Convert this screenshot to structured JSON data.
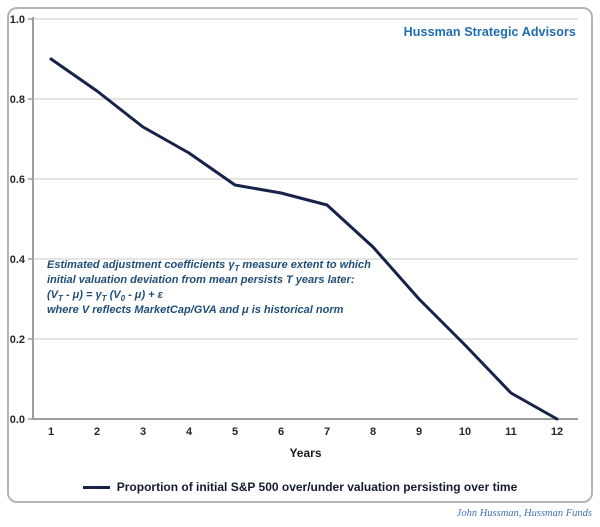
{
  "frame": {
    "title": "Hussman Strategic Advisors",
    "attribution": "John Hussman, Hussman Funds"
  },
  "legend": {
    "label": "Proportion of initial S&P 500 over/under valuation persisting over time"
  },
  "annotation": {
    "color": "#1f4e79",
    "lines": [
      [
        {
          "text": "Estimated adjustment coefficients "
        },
        {
          "text": "γ"
        },
        {
          "text": "T",
          "sub": true
        },
        {
          "text": " measure extent to which"
        }
      ],
      [
        {
          "text": "initial valuation deviation from mean persists T years later:"
        }
      ],
      [
        {
          "text": "(V"
        },
        {
          "text": "T",
          "sub": true
        },
        {
          "text": " - μ) = γ"
        },
        {
          "text": "T",
          "sub": true
        },
        {
          "text": " (V"
        },
        {
          "text": "0",
          "sub": true
        },
        {
          "text": " - μ) + ε"
        }
      ],
      [
        {
          "text": "where V reflects MarketCap/GVA and μ is historical norm"
        }
      ]
    ]
  },
  "colors": {
    "accent_blue": "#1e6cb2",
    "annotation_navy": "#1f4e79",
    "line_navy": "#16224a",
    "legend_text": "#141c30",
    "attribution_blue": "#4070b8",
    "gridline": "#c9c9c9",
    "axis": "#9e9e9e",
    "tick_text": "#262626",
    "frame_border": "#b5b5b5"
  },
  "chart_data": {
    "type": "line",
    "title": "Hussman Strategic Advisors",
    "x": [
      1,
      2,
      3,
      4,
      5,
      6,
      7,
      8,
      9,
      10,
      11,
      12
    ],
    "xlabel": "Years",
    "ylabel": "",
    "ylim": [
      0.0,
      1.0
    ],
    "yticks": [
      0.0,
      0.2,
      0.4,
      0.6,
      0.8,
      1.0
    ],
    "ytick_labels": [
      "0.0",
      "0.2",
      "0.4",
      "0.6",
      "0.8",
      "1.0"
    ],
    "xtick_labels": [
      "1",
      "2",
      "3",
      "4",
      "5",
      "6",
      "7",
      "8",
      "9",
      "10",
      "11",
      "12"
    ],
    "grid": true,
    "legend_position": "bottom-center",
    "series": [
      {
        "name": "Proportion of initial S&P 500 over/under valuation persisting over time",
        "color": "#16224a",
        "values": [
          0.9,
          0.82,
          0.73,
          0.665,
          0.585,
          0.565,
          0.535,
          0.43,
          0.3,
          0.185,
          0.065,
          0.0
        ]
      }
    ]
  }
}
